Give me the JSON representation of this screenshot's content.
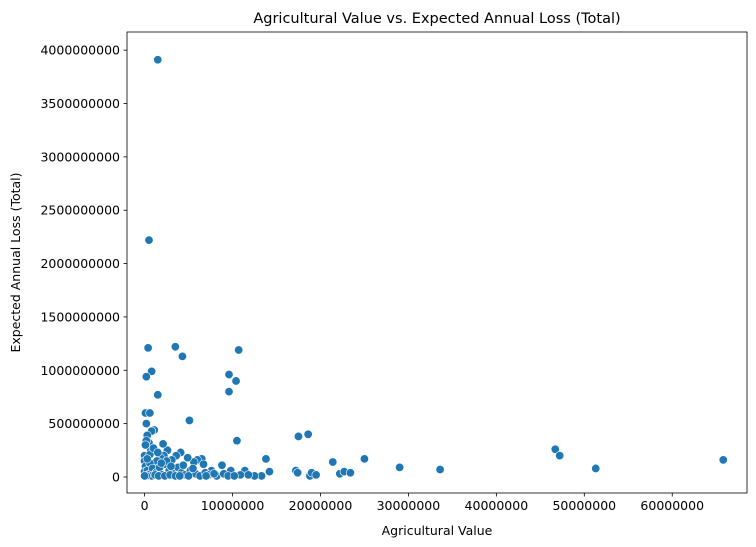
{
  "chart_data": {
    "type": "scatter",
    "title": "Agricultural Value vs. Expected Annual Loss (Total)",
    "xlabel": "Agricultural Value",
    "ylabel": "Expected Annual Loss (Total)",
    "xlim": [
      -2000000,
      68500000
    ],
    "ylim": [
      -150000000,
      4170000000
    ],
    "x_ticks": [
      0,
      10000000,
      20000000,
      30000000,
      40000000,
      50000000,
      60000000
    ],
    "x_tick_labels": [
      "0",
      "10000000",
      "20000000",
      "30000000",
      "40000000",
      "50000000",
      "60000000"
    ],
    "y_ticks": [
      0,
      500000000,
      1000000000,
      1500000000,
      2000000000,
      2500000000,
      3000000000,
      3500000000,
      4000000000
    ],
    "y_tick_labels": [
      "0",
      "500000000",
      "1000000000",
      "1500000000",
      "2000000000",
      "2500000000",
      "3000000000",
      "3500000000",
      "4000000000"
    ],
    "grid": false,
    "marker_color": "#1f77b4",
    "marker_edge_color": "#ffffff",
    "points": [
      [
        1500000,
        3910000000
      ],
      [
        500000,
        2220000000
      ],
      [
        400000,
        1210000000
      ],
      [
        3500000,
        1220000000
      ],
      [
        4300000,
        1130000000
      ],
      [
        10700000,
        1190000000
      ],
      [
        800000,
        990000000
      ],
      [
        200000,
        940000000
      ],
      [
        9600000,
        960000000
      ],
      [
        10400000,
        900000000
      ],
      [
        9600000,
        800000000
      ],
      [
        1500000,
        770000000
      ],
      [
        5100000,
        530000000
      ],
      [
        100000,
        600000000
      ],
      [
        600000,
        600000000
      ],
      [
        200000,
        500000000
      ],
      [
        10500000,
        340000000
      ],
      [
        17500000,
        380000000
      ],
      [
        18600000,
        400000000
      ],
      [
        21400000,
        140000000
      ],
      [
        25000000,
        170000000
      ],
      [
        29000000,
        90000000
      ],
      [
        33600000,
        70000000
      ],
      [
        46700000,
        260000000
      ],
      [
        47200000,
        200000000
      ],
      [
        51300000,
        80000000
      ],
      [
        65800000,
        160000000
      ],
      [
        13800000,
        170000000
      ],
      [
        14200000,
        50000000
      ],
      [
        13300000,
        10000000
      ],
      [
        17200000,
        60000000
      ],
      [
        17400000,
        40000000
      ],
      [
        18800000,
        10000000
      ],
      [
        19000000,
        40000000
      ],
      [
        19500000,
        20000000
      ],
      [
        22200000,
        30000000
      ],
      [
        22700000,
        50000000
      ],
      [
        23400000,
        40000000
      ],
      [
        12500000,
        10000000
      ],
      [
        11400000,
        60000000
      ],
      [
        9800000,
        60000000
      ],
      [
        10900000,
        20000000
      ],
      [
        8800000,
        110000000
      ],
      [
        7600000,
        60000000
      ],
      [
        6500000,
        170000000
      ],
      [
        6000000,
        160000000
      ],
      [
        5600000,
        140000000
      ],
      [
        4900000,
        180000000
      ],
      [
        4100000,
        230000000
      ],
      [
        3600000,
        200000000
      ],
      [
        3100000,
        160000000
      ],
      [
        2600000,
        250000000
      ],
      [
        2200000,
        200000000
      ],
      [
        2100000,
        310000000
      ],
      [
        1800000,
        180000000
      ],
      [
        1400000,
        150000000
      ],
      [
        1100000,
        440000000
      ],
      [
        800000,
        430000000
      ],
      [
        700000,
        250000000
      ],
      [
        500000,
        320000000
      ],
      [
        300000,
        390000000
      ],
      [
        200000,
        340000000
      ],
      [
        100000,
        300000000
      ],
      [
        0,
        200000000
      ],
      [
        0,
        150000000
      ],
      [
        100000,
        100000000
      ],
      [
        0,
        50000000
      ],
      [
        300000,
        60000000
      ],
      [
        600000,
        130000000
      ],
      [
        900000,
        80000000
      ],
      [
        1300000,
        40000000
      ],
      [
        1700000,
        90000000
      ],
      [
        2000000,
        20000000
      ],
      [
        2400000,
        120000000
      ],
      [
        2800000,
        60000000
      ],
      [
        3300000,
        30000000
      ],
      [
        3800000,
        90000000
      ],
      [
        4200000,
        40000000
      ],
      [
        4600000,
        20000000
      ],
      [
        5200000,
        60000000
      ],
      [
        5800000,
        30000000
      ],
      [
        6300000,
        10000000
      ],
      [
        6900000,
        40000000
      ],
      [
        7300000,
        20000000
      ],
      [
        8200000,
        10000000
      ],
      [
        9000000,
        30000000
      ],
      [
        9500000,
        10000000
      ],
      [
        10200000,
        10000000
      ],
      [
        11800000,
        20000000
      ],
      [
        400000,
        20000000
      ],
      [
        800000,
        10000000
      ],
      [
        1200000,
        20000000
      ],
      [
        1600000,
        10000000
      ],
      [
        2300000,
        10000000
      ],
      [
        2900000,
        20000000
      ],
      [
        3500000,
        10000000
      ],
      [
        4000000,
        10000000
      ],
      [
        5000000,
        10000000
      ],
      [
        7000000,
        10000000
      ],
      [
        7900000,
        30000000
      ],
      [
        600000,
        210000000
      ],
      [
        1000000,
        270000000
      ],
      [
        1500000,
        230000000
      ],
      [
        2500000,
        150000000
      ],
      [
        3000000,
        100000000
      ],
      [
        4400000,
        110000000
      ],
      [
        5500000,
        80000000
      ],
      [
        6700000,
        120000000
      ],
      [
        300000,
        170000000
      ],
      [
        1900000,
        130000000
      ],
      [
        200000,
        10000000
      ],
      [
        0,
        10000000
      ]
    ]
  }
}
